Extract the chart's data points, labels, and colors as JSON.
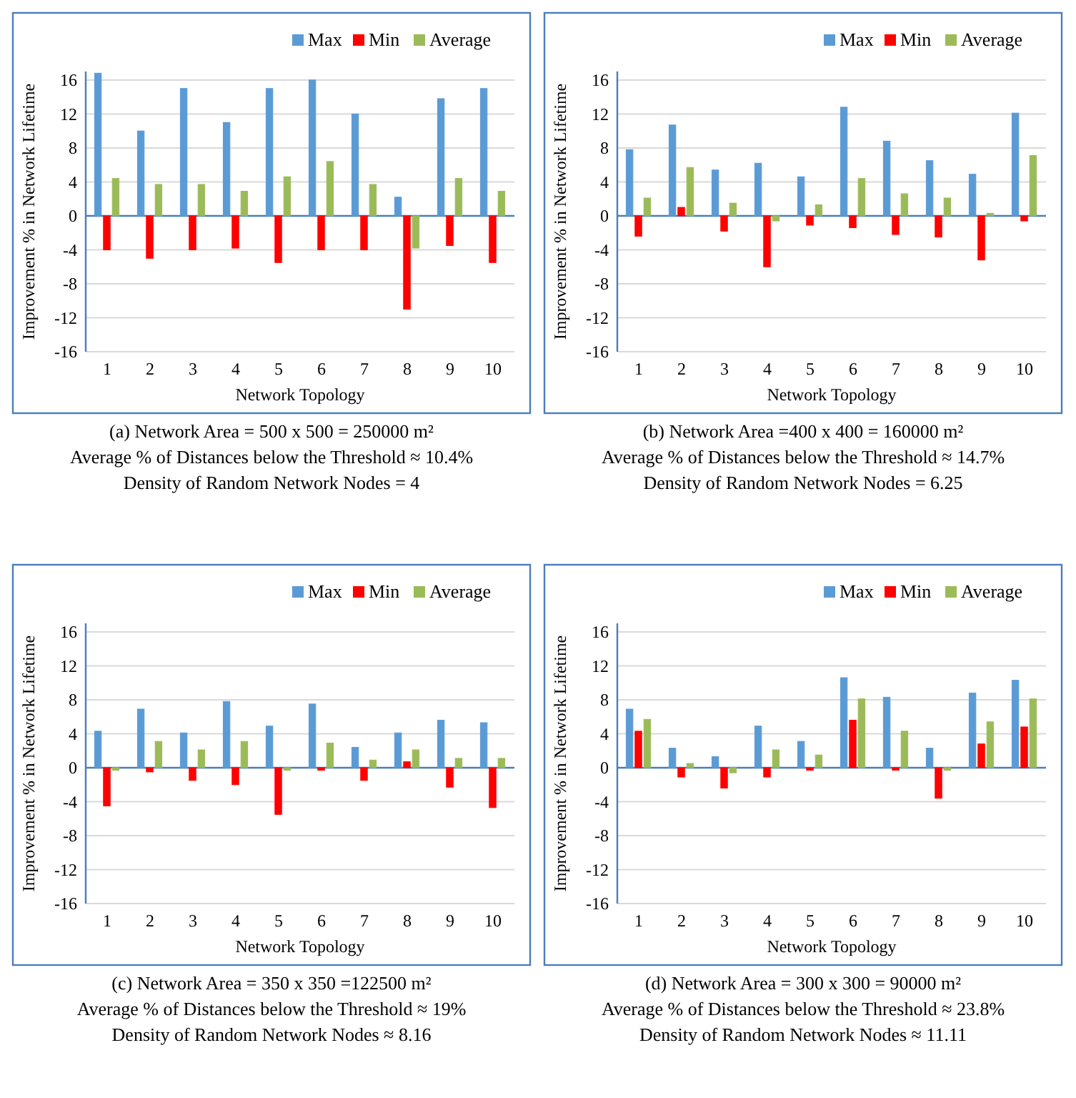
{
  "chart_data": [
    {
      "type": "bar",
      "categories": [
        "1",
        "2",
        "3",
        "4",
        "5",
        "6",
        "7",
        "8",
        "9",
        "10"
      ],
      "xlabel": "Network Topology",
      "ylabel": "Improvement % in Network Lifetime",
      "ylim": [
        -16,
        17
      ],
      "yticks": [
        -16,
        -12,
        -8,
        -4,
        0,
        4,
        8,
        12,
        16
      ],
      "grid": "y",
      "legend": "top right",
      "ref_lines": [
        {
          "axis": "y",
          "value": 0,
          "color": "#4a7ebb"
        }
      ],
      "annotations": [
        "(a) Network Area = 500 x 500 = 250000 m²",
        "Average % of Distances below the Threshold ≈ 10.4%",
        "Density of Random Network Nodes = 4"
      ],
      "series": [
        {
          "name": "Max",
          "color": "#5b9bd5",
          "values": [
            16.8,
            10,
            15,
            11,
            15,
            16,
            12,
            2.2,
            13.8,
            15
          ]
        },
        {
          "name": "Min",
          "color": "#ff0000",
          "values": [
            -4,
            -5,
            -4,
            -3.8,
            -5.5,
            -4,
            -4,
            -11,
            -3.5,
            -5.5
          ]
        },
        {
          "name": "Average",
          "color": "#9bbb59",
          "values": [
            4.4,
            3.7,
            3.7,
            2.9,
            4.6,
            6.4,
            3.7,
            -3.8,
            4.4,
            2.9
          ]
        }
      ]
    },
    {
      "type": "bar",
      "categories": [
        "1",
        "2",
        "3",
        "4",
        "5",
        "6",
        "7",
        "8",
        "9",
        "10"
      ],
      "xlabel": "Network Topology",
      "ylabel": "Improvement %  in Network Lifetime",
      "ylim": [
        -16,
        17
      ],
      "yticks": [
        -16,
        -12,
        -8,
        -4,
        0,
        4,
        8,
        12,
        16
      ],
      "grid": "y",
      "legend": "top right",
      "ref_lines": [
        {
          "axis": "y",
          "value": 0,
          "color": "#4a7ebb"
        }
      ],
      "annotations": [
        "(b) Network Area =400 x 400 = 160000 m²",
        "Average % of Distances below the Threshold ≈ 14.7%",
        "Density of Random Network Nodes = 6.25"
      ],
      "series": [
        {
          "name": "Max",
          "color": "#5b9bd5",
          "values": [
            7.8,
            10.7,
            5.4,
            6.2,
            4.6,
            12.8,
            8.8,
            6.5,
            4.9,
            12.1
          ]
        },
        {
          "name": "Min",
          "color": "#ff0000",
          "values": [
            -2.4,
            1,
            -1.8,
            -6,
            -1.1,
            -1.4,
            -2.2,
            -2.5,
            -5.2,
            -0.6
          ]
        },
        {
          "name": "Average",
          "color": "#9bbb59",
          "values": [
            2.1,
            5.7,
            1.5,
            -0.6,
            1.3,
            4.4,
            2.6,
            2.1,
            0.3,
            7.1
          ]
        }
      ]
    },
    {
      "type": "bar",
      "categories": [
        "1",
        "2",
        "3",
        "4",
        "5",
        "6",
        "7",
        "8",
        "9",
        "10"
      ],
      "xlabel": "Network Topology",
      "ylabel": "Improvement % in Network Lifetime",
      "ylim": [
        -16,
        17
      ],
      "yticks": [
        -16,
        -12,
        -8,
        -4,
        0,
        4,
        8,
        12,
        16
      ],
      "grid": "y",
      "legend": "top right",
      "ref_lines": [
        {
          "axis": "y",
          "value": 0,
          "color": "#4a7ebb"
        }
      ],
      "annotations": [
        "(c) Network Area = 350 x 350 =122500 m²",
        "Average % of Distances below the Threshold ≈ 19%",
        "Density of Random Network Nodes ≈ 8.16"
      ],
      "series": [
        {
          "name": "Max",
          "color": "#5b9bd5",
          "values": [
            4.3,
            6.9,
            4.1,
            7.8,
            4.9,
            7.5,
            2.4,
            4.1,
            5.6,
            5.3
          ]
        },
        {
          "name": "Min",
          "color": "#ff0000",
          "values": [
            -4.5,
            -0.5,
            -1.5,
            -2,
            -5.5,
            -0.3,
            -1.5,
            0.7,
            -2.3,
            -4.7
          ]
        },
        {
          "name": "Average",
          "color": "#9bbb59",
          "values": [
            -0.3,
            3.1,
            2.1,
            3.1,
            -0.3,
            2.9,
            0.9,
            2.1,
            1.1,
            1.1
          ]
        }
      ]
    },
    {
      "type": "bar",
      "categories": [
        "1",
        "2",
        "3",
        "4",
        "5",
        "6",
        "7",
        "8",
        "9",
        "10"
      ],
      "xlabel": "Network Topology",
      "ylabel": "Improvement %  in Network Lifetime",
      "ylim": [
        -16,
        17
      ],
      "yticks": [
        -16,
        -12,
        -8,
        -4,
        0,
        4,
        8,
        12,
        16
      ],
      "grid": "y",
      "legend": "top right",
      "ref_lines": [
        {
          "axis": "y",
          "value": 0,
          "color": "#4a7ebb"
        }
      ],
      "annotations": [
        "(d) Network Area = 300 x 300 = 90000 m²",
        "Average % of Distances below the Threshold ≈ 23.8%",
        "Density of Random Network Nodes ≈ 11.11"
      ],
      "series": [
        {
          "name": "Max",
          "color": "#5b9bd5",
          "values": [
            6.9,
            2.3,
            1.3,
            4.9,
            3.1,
            10.6,
            8.3,
            2.3,
            8.8,
            10.3
          ]
        },
        {
          "name": "Min",
          "color": "#ff0000",
          "values": [
            4.3,
            -1.1,
            -2.4,
            -1.1,
            -0.3,
            5.6,
            -0.3,
            -3.6,
            2.8,
            4.8
          ]
        },
        {
          "name": "Average",
          "color": "#9bbb59",
          "values": [
            5.7,
            0.5,
            -0.6,
            2.1,
            1.5,
            8.1,
            4.3,
            -0.3,
            5.4,
            8.1
          ]
        }
      ]
    }
  ]
}
